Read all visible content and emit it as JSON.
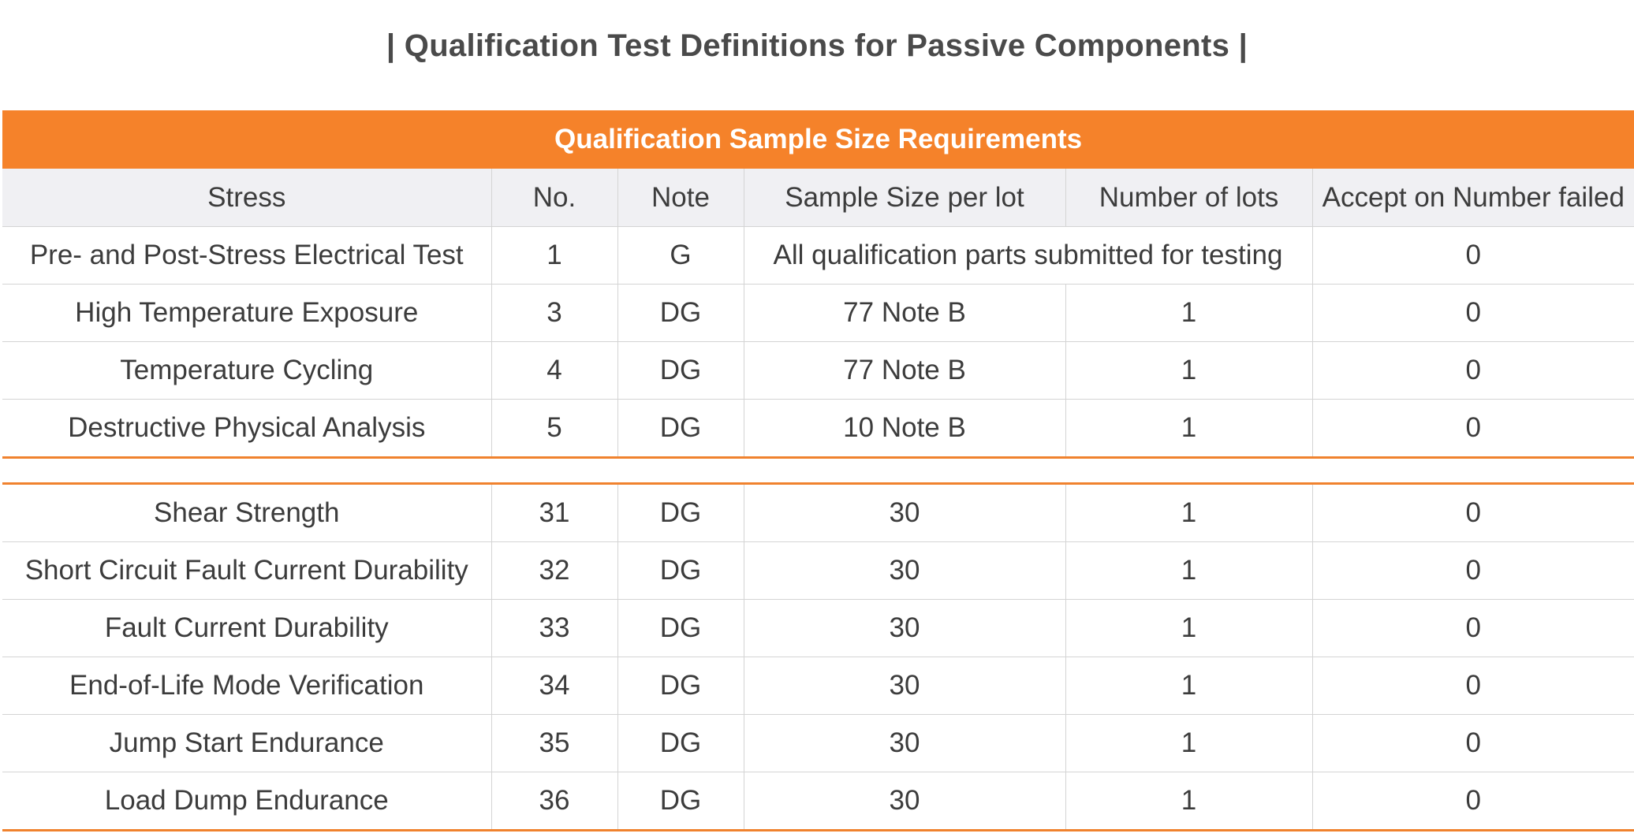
{
  "page": {
    "title": "| Qualification Test Definitions for Passive Components |"
  },
  "table": {
    "banner": "Qualification Sample Size Requirements",
    "headers": {
      "stress": "Stress",
      "no": "No.",
      "note": "Note",
      "sample_size": "Sample Size per lot",
      "lots": "Number of lots",
      "accept": "Accept on Number failed"
    },
    "first_row": {
      "stress": "Pre- and Post-Stress Electrical Test",
      "no": "1",
      "note": "G",
      "merged": "All qualification parts submitted for testing",
      "accept": "0"
    },
    "group1": [
      {
        "stress": "High Temperature Exposure",
        "no": "3",
        "note": "DG",
        "sample_size": "77 Note B",
        "lots": "1",
        "accept": "0"
      },
      {
        "stress": "Temperature Cycling",
        "no": "4",
        "note": "DG",
        "sample_size": "77 Note B",
        "lots": "1",
        "accept": "0"
      },
      {
        "stress": "Destructive Physical Analysis",
        "no": "5",
        "note": "DG",
        "sample_size": "10 Note B",
        "lots": "1",
        "accept": "0"
      }
    ],
    "group2": [
      {
        "stress": "Shear Strength",
        "no": "31",
        "note": "DG",
        "sample_size": "30",
        "lots": "1",
        "accept": "0"
      },
      {
        "stress": "Short Circuit Fault Current Durability",
        "no": "32",
        "note": "DG",
        "sample_size": "30",
        "lots": "1",
        "accept": "0"
      },
      {
        "stress": "Fault Current Durability",
        "no": "33",
        "note": "DG",
        "sample_size": "30",
        "lots": "1",
        "accept": "0"
      },
      {
        "stress": "End-of-Life Mode Verification",
        "no": "34",
        "note": "DG",
        "sample_size": "30",
        "lots": "1",
        "accept": "0"
      },
      {
        "stress": "Jump Start Endurance",
        "no": "35",
        "note": "DG",
        "sample_size": "30",
        "lots": "1",
        "accept": "0"
      },
      {
        "stress": "Load Dump Endurance",
        "no": "36",
        "note": "DG",
        "sample_size": "30",
        "lots": "1",
        "accept": "0"
      }
    ]
  },
  "colors": {
    "accent": "#f5822a",
    "header_bg": "#f0f0f3",
    "grid": "#d4d4d4",
    "text": "#3c3c3c"
  }
}
